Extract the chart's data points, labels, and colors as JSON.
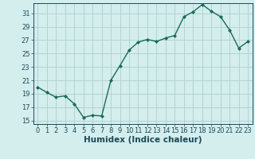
{
  "x": [
    0,
    1,
    2,
    3,
    4,
    5,
    6,
    7,
    8,
    9,
    10,
    11,
    12,
    13,
    14,
    15,
    16,
    17,
    18,
    19,
    20,
    21,
    22,
    23
  ],
  "y": [
    20,
    19.2,
    18.5,
    18.7,
    17.5,
    15.5,
    15.8,
    15.7,
    21,
    23.2,
    25.5,
    26.7,
    27.1,
    26.8,
    27.3,
    27.7,
    30.5,
    31.2,
    32.3,
    31.3,
    30.5,
    28.5,
    25.8,
    26.8
  ],
  "line_color": "#1a6b5a",
  "marker": "D",
  "marker_size": 2.0,
  "background_color": "#d4eded",
  "grid_color": "#aed0d0",
  "xlabel": "Humidex (Indice chaleur)",
  "ylim": [
    14.5,
    32.5
  ],
  "xlim": [
    -0.5,
    23.5
  ],
  "yticks": [
    15,
    17,
    19,
    21,
    23,
    25,
    27,
    29,
    31
  ],
  "xticks": [
    0,
    1,
    2,
    3,
    4,
    5,
    6,
    7,
    8,
    9,
    10,
    11,
    12,
    13,
    14,
    15,
    16,
    17,
    18,
    19,
    20,
    21,
    22,
    23
  ],
  "font_color": "#1a4a5a",
  "tick_fontsize": 6.0,
  "xlabel_fontsize": 7.5,
  "line_width": 1.0
}
